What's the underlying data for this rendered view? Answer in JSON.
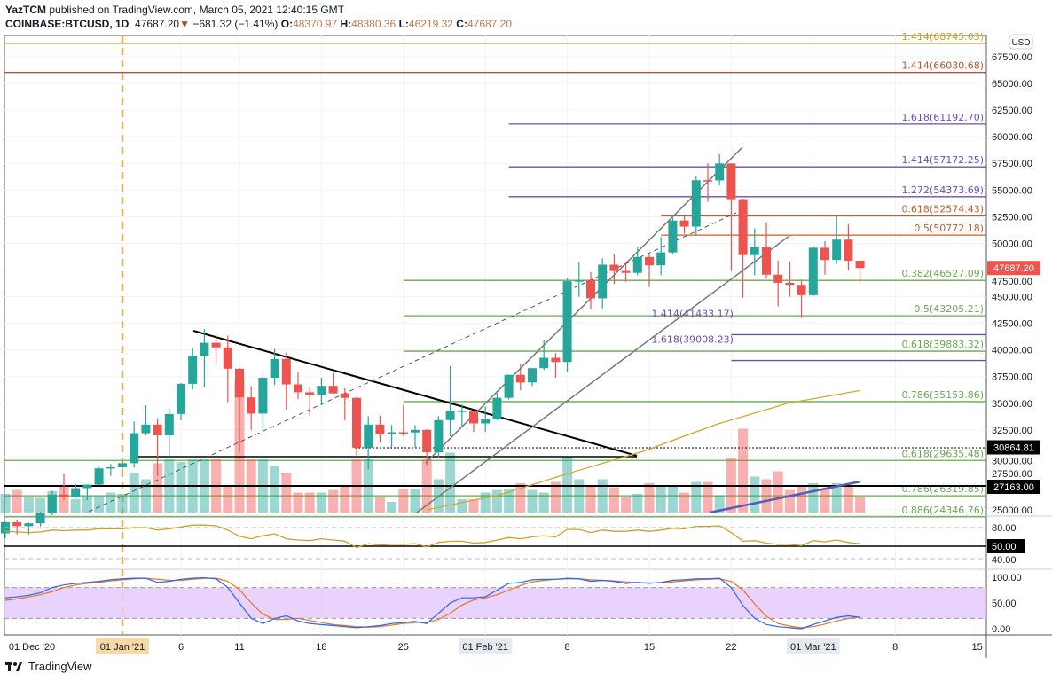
{
  "header": {
    "author": "YazTCM",
    "published": "published on TradingView.com, March 05, 2021 12:40:15 GMT",
    "symbol": "COINBASE:BTCUSD, 1D",
    "last": "47687.20",
    "change_arrow": "▼",
    "change": "−681.32 (−1.41%)",
    "o_label": "O:",
    "o": "48370.97",
    "h_label": "H:",
    "h": "48380.36",
    "l_label": "L:",
    "l": "46219.32",
    "c_label": "C:",
    "c": "47687.20"
  },
  "footer": {
    "brand": "TradingView"
  },
  "colors": {
    "up": "#26a69a",
    "down": "#ef5350",
    "ma": "#d4a72c",
    "rsi": "#c9a227",
    "stoch_k": "#2962ff",
    "stoch_d": "#e8751a",
    "stoch_band": "#e3c8fb"
  },
  "chart_data": {
    "type": "candlestick",
    "title": "COINBASE:BTCUSD, 1D",
    "currency": "USD",
    "ylim": [
      24000,
      69000
    ],
    "start_date": "2020-12-22",
    "y_ticks": [
      "25000.00",
      "27500.00",
      "30000.00",
      "32500.00",
      "35000.00",
      "37500.00",
      "40000.00",
      "42500.00",
      "45000.00",
      "47500.00",
      "50000.00",
      "52500.00",
      "55000.00",
      "57500.00",
      "60000.00",
      "62500.00",
      "65000.00",
      "67500.00"
    ],
    "x_ticks": [
      {
        "label": "01 Dec '20",
        "day": -9.4,
        "style": "plain"
      },
      {
        "label": "01 Jan '21",
        "day": 10,
        "style": "highlight"
      },
      {
        "label": "6",
        "day": 15
      },
      {
        "label": "11",
        "day": 20
      },
      {
        "label": "18",
        "day": 27
      },
      {
        "label": "25",
        "day": 34
      },
      {
        "label": "01 Feb '21",
        "day": 41,
        "style": "box"
      },
      {
        "label": "8",
        "day": 48
      },
      {
        "label": "15",
        "day": 55
      },
      {
        "label": "22",
        "day": 62
      },
      {
        "label": "01 Mar '21",
        "day": 69,
        "style": "box"
      },
      {
        "label": "8",
        "day": 76
      },
      {
        "label": "15",
        "day": 83
      }
    ],
    "candles_ohlc": [
      [
        22800,
        23900,
        22350,
        23840
      ],
      [
        23840,
        24100,
        22700,
        23480
      ],
      [
        23480,
        23800,
        22700,
        23740
      ],
      [
        23740,
        24800,
        23450,
        24690
      ],
      [
        24690,
        26800,
        24500,
        26440
      ],
      [
        26440,
        28400,
        25900,
        26250
      ],
      [
        26250,
        27400,
        26100,
        27040
      ],
      [
        27040,
        27380,
        25900,
        27370
      ],
      [
        27370,
        28990,
        27320,
        28890
      ],
      [
        28890,
        29300,
        28200,
        29000
      ],
      [
        29000,
        29600,
        28700,
        29380
      ],
      [
        29380,
        33300,
        28950,
        32190
      ],
      [
        32190,
        34800,
        31950,
        33000
      ],
      [
        33000,
        33600,
        28200,
        31990
      ],
      [
        31990,
        34500,
        29900,
        33990
      ],
      [
        33990,
        36900,
        33400,
        36820
      ],
      [
        36820,
        40200,
        36300,
        39470
      ],
      [
        39470,
        41950,
        36500,
        40670
      ],
      [
        40670,
        41400,
        38720,
        40240
      ],
      [
        40240,
        41350,
        35100,
        38240
      ],
      [
        38240,
        38300,
        30400,
        35550
      ],
      [
        35550,
        36600,
        32500,
        34030
      ],
      [
        34030,
        37850,
        32400,
        37390
      ],
      [
        37390,
        40100,
        36700,
        39150
      ],
      [
        39150,
        39750,
        34400,
        36770
      ],
      [
        36770,
        37900,
        35400,
        36030
      ],
      [
        36030,
        36500,
        33850,
        35800
      ],
      [
        35800,
        37400,
        34800,
        36630
      ],
      [
        36630,
        37850,
        35900,
        35930
      ],
      [
        35930,
        36400,
        33400,
        35500
      ],
      [
        35500,
        35600,
        30100,
        30840
      ],
      [
        30840,
        33800,
        28800,
        33000
      ],
      [
        33000,
        33850,
        31400,
        32100
      ],
      [
        32100,
        32950,
        30900,
        32280
      ],
      [
        32280,
        34850,
        31900,
        32260
      ],
      [
        32260,
        32950,
        30800,
        32500
      ],
      [
        32500,
        32550,
        29200,
        30400
      ],
      [
        30400,
        33800,
        29900,
        33420
      ],
      [
        33420,
        38500,
        31900,
        34300
      ],
      [
        34300,
        34900,
        32900,
        34300
      ],
      [
        34300,
        34300,
        32300,
        33110
      ],
      [
        33110,
        34700,
        32300,
        33520
      ],
      [
        33520,
        35950,
        33420,
        35510
      ],
      [
        35510,
        37700,
        35360,
        37660
      ],
      [
        37660,
        38700,
        36200,
        36950
      ],
      [
        36950,
        38300,
        36600,
        38290
      ],
      [
        38290,
        40950,
        38100,
        39260
      ],
      [
        39260,
        39700,
        37400,
        38870
      ],
      [
        38870,
        46800,
        37950,
        46450
      ],
      [
        46450,
        48200,
        45000,
        46530
      ],
      [
        46530,
        47300,
        43800,
        44840
      ],
      [
        44840,
        48600,
        43900,
        48000
      ],
      [
        48000,
        48950,
        46200,
        47410
      ],
      [
        47410,
        48100,
        46400,
        47230
      ],
      [
        47230,
        49700,
        47000,
        48720
      ],
      [
        48720,
        49000,
        45900,
        47940
      ],
      [
        47940,
        50600,
        47000,
        49150
      ],
      [
        49150,
        52600,
        48950,
        52140
      ],
      [
        52140,
        52550,
        50900,
        51570
      ],
      [
        51570,
        56300,
        50800,
        55920
      ],
      [
        55920,
        57500,
        53900,
        55900
      ],
      [
        55900,
        58350,
        55450,
        57490
      ],
      [
        57490,
        57500,
        47400,
        54140
      ],
      [
        54140,
        54200,
        44900,
        48900
      ],
      [
        48900,
        51400,
        47000,
        49680
      ],
      [
        49680,
        52000,
        46700,
        47060
      ],
      [
        47060,
        48400,
        44100,
        46300
      ],
      [
        46300,
        48300,
        45000,
        46110
      ],
      [
        46110,
        46600,
        43000,
        45140
      ],
      [
        45140,
        49750,
        45000,
        49590
      ],
      [
        49590,
        50200,
        47050,
        48440
      ],
      [
        48440,
        52600,
        48100,
        50350
      ],
      [
        50350,
        51800,
        47500,
        48370
      ],
      [
        48370,
        48380,
        46219.32,
        47687.2
      ]
    ],
    "volume_relative": [
      14,
      17,
      12,
      11,
      16,
      20,
      10,
      13,
      13,
      15,
      14,
      30,
      25,
      37,
      40,
      38,
      40,
      40,
      40,
      20,
      100,
      40,
      40,
      35,
      30,
      15,
      15,
      15,
      17,
      20,
      40,
      40,
      12,
      8,
      18,
      18,
      40,
      25,
      45,
      10,
      10,
      15,
      17,
      18,
      22,
      17,
      15,
      23,
      42,
      25,
      20,
      25,
      19,
      12,
      14,
      22,
      20,
      20,
      15,
      23,
      23,
      13,
      41,
      63,
      27,
      25,
      31,
      17,
      20,
      22,
      18,
      22,
      20,
      12
    ],
    "moving_average": {
      "from_day": 36,
      "values": [
        25000,
        26400,
        28500,
        30500,
        33000,
        35000,
        36200
      ]
    },
    "fib_levels": [
      {
        "label": "1.414(68745.03)",
        "price": 68745.03,
        "color": "#d4a017",
        "from_day": -10
      },
      {
        "label": "1.414(66030.68)",
        "price": 66030.68,
        "color": "#b5562d",
        "from_day": -10
      },
      {
        "label": "1.618(61192.70)",
        "price": 61192.7,
        "color": "#6a4fb3",
        "from_day": 43
      },
      {
        "label": "1.414(57172.25)",
        "price": 57172.25,
        "color": "#6a4fb3",
        "from_day": 43
      },
      {
        "label": "1.272(54373.69)",
        "price": 54373.69,
        "color": "#6a4fb3",
        "from_day": 43
      },
      {
        "label": "0.618(52574.43)",
        "price": 52574.43,
        "color": "#c0602a",
        "from_day": 56
      },
      {
        "label": "0.5(50772.18)",
        "price": 50772.18,
        "color": "#c0602a",
        "from_day": 56
      },
      {
        "label": "0.382(46527.09)",
        "price": 46527.09,
        "color": "#6aa84f",
        "from_day": 34
      },
      {
        "label": "0.5(43205.21)",
        "price": 43205.21,
        "color": "#6aa84f",
        "from_day": 34
      },
      {
        "label": "1.414(41433.17)",
        "price": 41433.17,
        "color": "#6a4fb3",
        "from_day": 62,
        "label_left": true
      },
      {
        "label": "0.618(39883.32)",
        "price": 39883.32,
        "color": "#6aa84f",
        "from_day": 34
      },
      {
        "label": "1.618(39008.23)",
        "price": 39008.23,
        "color": "#6a4fb3",
        "from_day": 62,
        "label_left": true
      },
      {
        "label": "0.786(35153.86)",
        "price": 35153.86,
        "color": "#6aa84f",
        "from_day": 34
      },
      {
        "label": "0.618(29635.48)",
        "price": 29635.48,
        "color": "#6aa84f",
        "from_day": -10
      },
      {
        "label": "0.786(26319.85)",
        "price": 26319.85,
        "color": "#6aa84f",
        "from_day": -10
      },
      {
        "label": "0.886(24346.76)",
        "price": 24346.76,
        "color": "#6aa84f",
        "from_day": -10
      }
    ],
    "price_badges": [
      {
        "label": "47687.20",
        "price": 47687.2,
        "bg": "#ef5350"
      },
      {
        "label": "30864.81",
        "price": 30864.81,
        "bg": "#000000"
      },
      {
        "label": "27163.00",
        "price": 27163.0,
        "bg": "#000000"
      }
    ],
    "rsi": {
      "ticks": [
        "80.00",
        "40.00"
      ],
      "level_label": "50.00",
      "values": [
        74,
        73,
        72,
        73,
        76,
        75,
        76,
        76,
        78,
        78,
        78,
        80,
        80,
        76,
        78,
        81,
        84,
        84,
        83,
        76,
        66,
        62,
        67,
        70,
        62,
        60,
        59,
        62,
        60,
        58,
        48,
        54,
        52,
        53,
        53,
        54,
        49,
        56,
        58,
        58,
        55,
        56,
        60,
        64,
        62,
        65,
        67,
        65,
        77,
        77,
        72,
        76,
        74,
        74,
        76,
        74,
        76,
        79,
        78,
        82,
        82,
        83,
        72,
        58,
        59,
        55,
        53,
        53,
        51,
        59,
        57,
        60,
        56,
        54
      ]
    },
    "stoch_rsi": {
      "ticks": [
        "100.00",
        "50.00",
        "0.00"
      ],
      "k": [
        60,
        62,
        65,
        70,
        80,
        85,
        88,
        90,
        92,
        95,
        97,
        98,
        98,
        90,
        92,
        96,
        98,
        99,
        97,
        80,
        50,
        20,
        10,
        20,
        25,
        15,
        10,
        8,
        6,
        4,
        2,
        4,
        6,
        10,
        12,
        14,
        10,
        30,
        50,
        60,
        60,
        62,
        75,
        88,
        90,
        95,
        96,
        96,
        98,
        97,
        92,
        94,
        92,
        88,
        90,
        88,
        90,
        94,
        95,
        97,
        97,
        98,
        80,
        45,
        20,
        8,
        4,
        2,
        0,
        8,
        15,
        22,
        25,
        22
      ],
      "d": [
        55,
        58,
        62,
        66,
        72,
        80,
        85,
        88,
        90,
        93,
        95,
        97,
        98,
        96,
        94,
        94,
        96,
        98,
        98,
        92,
        76,
        50,
        28,
        18,
        18,
        20,
        16,
        12,
        8,
        6,
        4,
        3,
        4,
        7,
        10,
        12,
        12,
        18,
        30,
        46,
        56,
        60,
        66,
        75,
        84,
        91,
        94,
        96,
        97,
        97,
        95,
        94,
        93,
        91,
        90,
        89,
        89,
        91,
        93,
        95,
        96,
        97,
        92,
        75,
        48,
        24,
        10,
        5,
        2,
        4,
        9,
        15,
        20,
        23
      ]
    }
  }
}
